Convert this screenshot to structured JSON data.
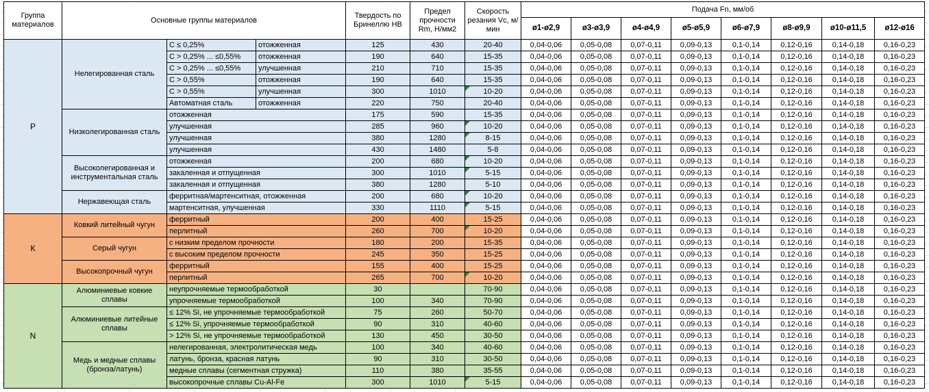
{
  "header": {
    "group": "Группа материалов",
    "materials": "Основные группы материалов",
    "hardness": "Твердость по Бринеллю HB",
    "strength": "Предел прочности Rm, Н/мм2",
    "speed": "Скорость резания Vc, м/мин",
    "feed_title": "Подача Fn, мм/об",
    "feed_cols": [
      "ø1-ø2,9",
      "ø3-ø3,9",
      "ø4-ø4,9",
      "ø5-ø5,9",
      "ø6-ø7,9",
      "ø8-ø9,9",
      "ø10-ø11,5",
      "ø12-ø16"
    ]
  },
  "feed_values": [
    "0,04-0,06",
    "0,05-0,08",
    "0,07-0,11",
    "0,09-0,13",
    "0,1-0,14",
    "0,12-0,16",
    "0,14-0,18",
    "0,16-0,23"
  ],
  "colors": {
    "group_p": "#dbe8f4",
    "group_k": "#f6b183",
    "group_n": "#c6dfb3",
    "marker": "#238a2e",
    "border": "#000000"
  },
  "groups": [
    {
      "code": "P",
      "color": "#dbe8f4",
      "subgroups": [
        {
          "name": "Нелегированная сталь",
          "rows": [
            {
              "material": "C ≤ 0,25%",
              "state": "отожженная",
              "hb": "125",
              "rm": "430",
              "vc": "20-40",
              "flag": false
            },
            {
              "material": "C > 0,25% ... ≤0,55%",
              "state": "отожженная",
              "hb": "190",
              "rm": "640",
              "vc": "15-35",
              "flag": false
            },
            {
              "material": "C > 0,25% ... ≤0,55%",
              "state": "улучшенная",
              "hb": "210",
              "rm": "710",
              "vc": "15-35",
              "flag": false
            },
            {
              "material": "C > 0,55%",
              "state": "отожженная",
              "hb": "190",
              "rm": "640",
              "vc": "15-35",
              "flag": false
            },
            {
              "material": "C > 0,55%",
              "state": "улучшенная",
              "hb": "300",
              "rm": "1010",
              "vc": "10-20",
              "flag": true
            },
            {
              "material": "Автоматная сталь",
              "state": "отожженная",
              "hb": "220",
              "rm": "750",
              "vc": "20-40",
              "flag": false
            }
          ]
        },
        {
          "name": "Низколегированная сталь",
          "rows": [
            {
              "material": "отожженная",
              "hb": "175",
              "rm": "590",
              "vc": "15-35",
              "flag": false
            },
            {
              "material": "улучшенная",
              "hb": "285",
              "rm": "960",
              "vc": "10-20",
              "flag": true
            },
            {
              "material": "улучшенная",
              "hb": "380",
              "rm": "1280",
              "vc": "8-15",
              "flag": true
            },
            {
              "material": "улучшенная",
              "hb": "430",
              "rm": "1480",
              "vc": "5-8",
              "flag": false
            }
          ]
        },
        {
          "name": "Высоколегированная и инструментальная сталь",
          "rows": [
            {
              "material": "отожженная",
              "hb": "200",
              "rm": "680",
              "vc": "10-20",
              "flag": true
            },
            {
              "material": "закаленная и отпущенная",
              "hb": "300",
              "rm": "1010",
              "vc": "5-15",
              "flag": true
            },
            {
              "material": "закаленная и отпущенная",
              "hb": "380",
              "rm": "1280",
              "vc": "5-10",
              "flag": false
            }
          ]
        },
        {
          "name": "Нержавеющая сталь",
          "rows": [
            {
              "material": "ферритная/мартенситная, отожженная",
              "hb": "200",
              "rm": "680",
              "vc": "10-20",
              "flag": true
            },
            {
              "material": "мартенситная, улучшенная",
              "hb": "330",
              "rm": "1110",
              "vc": "5-15",
              "flag": true
            }
          ]
        }
      ]
    },
    {
      "code": "К",
      "color": "#f6b183",
      "subgroups": [
        {
          "name": "Ковкий литейный чугун",
          "rows": [
            {
              "material": "ферритный",
              "hb": "200",
              "rm": "400",
              "vc": "15-25",
              "flag": false
            },
            {
              "material": "перлитный",
              "hb": "260",
              "rm": "700",
              "vc": "10-20",
              "flag": true
            }
          ]
        },
        {
          "name": "Серый чугун",
          "rows": [
            {
              "material": "с низким пределом прочности",
              "hb": "180",
              "rm": "200",
              "vc": "15-35",
              "flag": false
            },
            {
              "material": "с высоким пределом прочности",
              "hb": "245",
              "rm": "350",
              "vc": "15-25",
              "flag": false
            }
          ]
        },
        {
          "name": "Высокопрочный чугун",
          "rows": [
            {
              "material": "ферритный",
              "hb": "155",
              "rm": "400",
              "vc": "15-25",
              "flag": false
            },
            {
              "material": "перлитный",
              "hb": "265",
              "rm": "700",
              "vc": "10-20",
              "flag": true
            }
          ]
        }
      ]
    },
    {
      "code": "N",
      "color": "#c6dfb3",
      "subgroups": [
        {
          "name": "Алюминиевые ковкие сплавы",
          "rows": [
            {
              "material": "неупрочняемые термообработкой",
              "hb": "30",
              "rm": "",
              "vc": "70-90",
              "flag": false
            },
            {
              "material": "упрочняемые термообработкой",
              "hb": "100",
              "rm": "340",
              "vc": "70-90",
              "flag": false
            }
          ]
        },
        {
          "name": "Алюминиевые литейные сплавы",
          "rows": [
            {
              "material": "≤ 12% Si, не упрочняемые термообработкой",
              "hb": "75",
              "rm": "260",
              "vc": "50-70",
              "flag": false
            },
            {
              "material": "≤ 12% Si, упрочняемые термообработкой",
              "hb": "90",
              "rm": "310",
              "vc": "40-60",
              "flag": false
            },
            {
              "material": "> 12% Si, не упрочняемые термообработкой",
              "hb": "130",
              "rm": "450",
              "vc": "30-50",
              "flag": false
            }
          ]
        },
        {
          "name": "Медь и медные сплавы (бронза/латунь)",
          "rows": [
            {
              "material": "нелегированная, электролитическая медь",
              "hb": "100",
              "rm": "340",
              "vc": "40-60",
              "flag": false
            },
            {
              "material": "латунь, бронза, красная латунь",
              "hb": "90",
              "rm": "310",
              "vc": "30-50",
              "flag": false
            },
            {
              "material": "медные сплавы (сегментная стружка)",
              "hb": "110",
              "rm": "380",
              "vc": "35-55",
              "flag": false
            },
            {
              "material": "высокопрочные сплавы Cu-Al-Fe",
              "hb": "300",
              "rm": "1010",
              "vc": "5-15",
              "flag": true
            }
          ]
        }
      ]
    }
  ]
}
